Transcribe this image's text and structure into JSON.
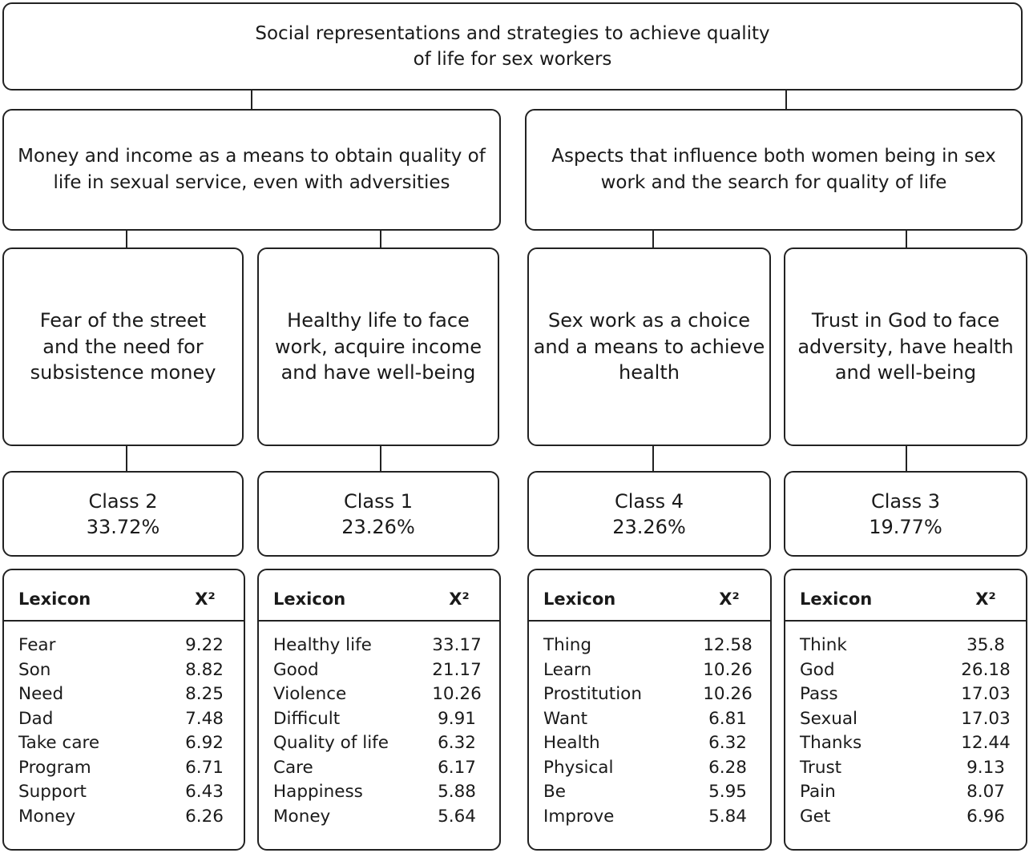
{
  "root": {
    "line1": "Social representations and strategies to achieve quality",
    "line2": "of life for sex workers"
  },
  "themes": [
    {
      "line1": "Money and income as a means to obtain quality of",
      "line2": "life in sexual service, even with adversities"
    },
    {
      "line1": "Aspects that influence both women being in sex",
      "line2": "work and the search for quality of life"
    }
  ],
  "subthemes": [
    {
      "lines": [
        "Fear of the street",
        "and the need for",
        "subsistence money"
      ]
    },
    {
      "lines": [
        "Healthy life to face",
        "work, acquire income",
        "and have well-being"
      ]
    },
    {
      "lines": [
        "Sex work as a choice",
        "and a means to achieve",
        "health"
      ]
    },
    {
      "lines": [
        "Trust in God to face",
        "adversity, have health",
        "and well-being"
      ]
    }
  ],
  "classes": [
    {
      "name": "Class 2",
      "percent": "33.72%"
    },
    {
      "name": "Class 1",
      "percent": "23.26%"
    },
    {
      "name": "Class 4",
      "percent": "23.26%"
    },
    {
      "name": "Class 3",
      "percent": "19.77%"
    }
  ],
  "lexicon_header": {
    "word": "Lexicon",
    "stat": "X²"
  },
  "lexicons": [
    {
      "rows": [
        {
          "word": "Fear",
          "value": "9.22"
        },
        {
          "word": "Son",
          "value": "8.82"
        },
        {
          "word": "Need",
          "value": "8.25"
        },
        {
          "word": "Dad",
          "value": "7.48"
        },
        {
          "word": "Take care",
          "value": "6.92"
        },
        {
          "word": "Program",
          "value": "6.71"
        },
        {
          "word": "Support",
          "value": "6.43"
        },
        {
          "word": "Money",
          "value": "6.26"
        }
      ]
    },
    {
      "rows": [
        {
          "word": "Healthy life",
          "value": "33.17"
        },
        {
          "word": "Good",
          "value": "21.17"
        },
        {
          "word": "Violence",
          "value": "10.26"
        },
        {
          "word": "Difficult",
          "value": "9.91"
        },
        {
          "word": "Quality of life",
          "value": "6.32"
        },
        {
          "word": "Care",
          "value": "6.17"
        },
        {
          "word": "Happiness",
          "value": "5.88"
        },
        {
          "word": "Money",
          "value": "5.64"
        }
      ]
    },
    {
      "rows": [
        {
          "word": "Thing",
          "value": "12.58"
        },
        {
          "word": "Learn",
          "value": "10.26"
        },
        {
          "word": "Prostitution",
          "value": "10.26"
        },
        {
          "word": "Want",
          "value": "6.81"
        },
        {
          "word": "Health",
          "value": "6.32"
        },
        {
          "word": "Physical",
          "value": "6.28"
        },
        {
          "word": "Be",
          "value": "5.95"
        },
        {
          "word": "Improve",
          "value": "5.84"
        }
      ]
    },
    {
      "rows": [
        {
          "word": "Think",
          "value": "35.8"
        },
        {
          "word": "God",
          "value": "26.18"
        },
        {
          "word": "Pass",
          "value": "17.03"
        },
        {
          "word": "Sexual",
          "value": "17.03"
        },
        {
          "word": "Thanks",
          "value": "12.44"
        },
        {
          "word": "Trust",
          "value": "9.13"
        },
        {
          "word": "Pain",
          "value": "8.07"
        },
        {
          "word": "Get",
          "value": "6.96"
        }
      ]
    }
  ]
}
